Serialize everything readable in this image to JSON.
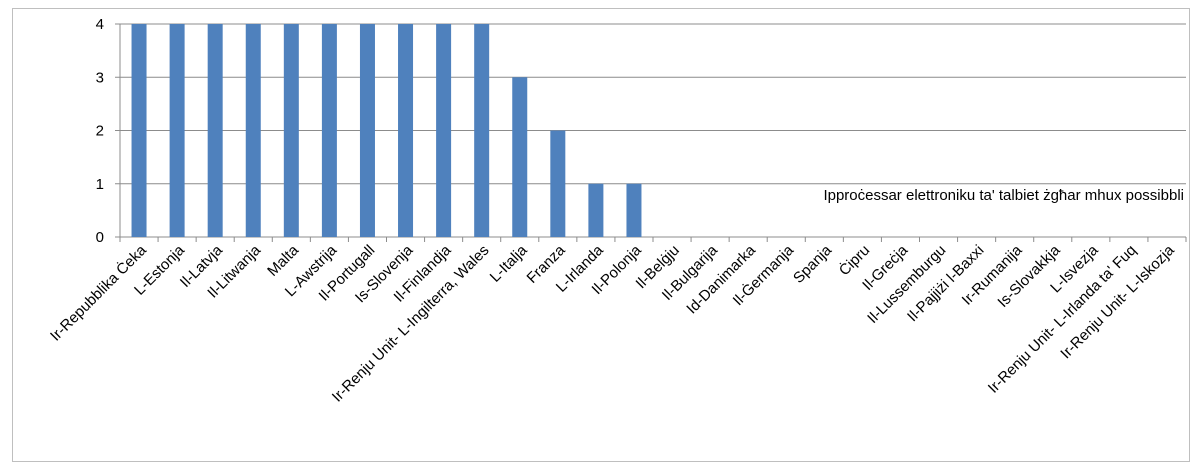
{
  "chart_data": {
    "type": "bar",
    "categories": [
      "Ir-Repubblika Ċeka",
      "L-Estonja",
      "Il-Latvja",
      "Il-Litwanja",
      "Malta",
      "L-Awstrija",
      "Il-Portugall",
      "Is-Slovenja",
      "Il-Finlandja",
      "Ir-Renju Unit- L-Ingilterra, Wales",
      "L-Italja",
      "Franza",
      "L-Irlanda",
      "Il-Polonja",
      "Il-Belġju",
      "Il-Bulgarija",
      "Id-Danimarka",
      "Il-Ġermanja",
      "Spanja",
      "Ċipru",
      "Il-Greċja",
      "Il-Lussemburgu",
      "Il-Pajjiżi l-Baxxi",
      "Ir-Rumanija",
      "Is-Slovakkja",
      "L-Isvezja",
      "Ir-Renju Unit- L-Irlanda ta' Fuq",
      "Ir-Renju Unit- L-Iskozja"
    ],
    "values": [
      4,
      4,
      4,
      4,
      4,
      4,
      4,
      4,
      4,
      4,
      3,
      2,
      1,
      1,
      0,
      0,
      0,
      0,
      0,
      0,
      0,
      0,
      0,
      0,
      0,
      0,
      0,
      0
    ],
    "title": "",
    "xlabel": "",
    "ylabel": "",
    "ylim": [
      0,
      4
    ],
    "yticks": [
      "0",
      "1",
      "2",
      "3",
      "4"
    ],
    "grid": true,
    "legend": "none",
    "bar_color": "#4f81bd",
    "annotation": "Ipproċessar elettroniku ta' talbiet żgħar mhux possibbli"
  }
}
